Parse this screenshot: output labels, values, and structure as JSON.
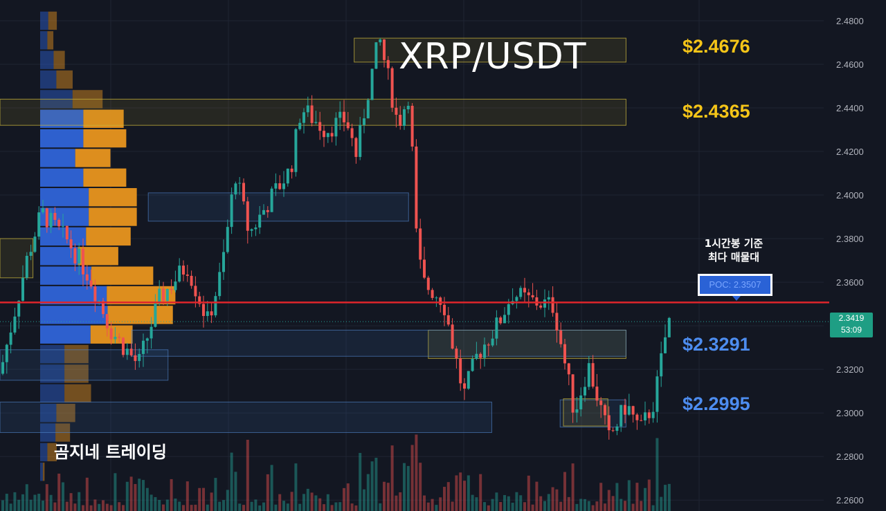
{
  "chart_data": {
    "type": "candlestick",
    "title": "XRP/USDT",
    "y_axis": {
      "ylim": [
        2.255,
        2.4895
      ],
      "ticks": [
        "2.4800",
        "2.4600",
        "2.4400",
        "2.4200",
        "2.4000",
        "2.3800",
        "2.3600",
        "2.3400",
        "2.3200",
        "2.3000",
        "2.2800",
        "2.2600"
      ],
      "position": "right"
    },
    "current_price": "2.3419",
    "countdown": "53:09",
    "poc": {
      "label": "POC: 2.3507",
      "value": 2.3507
    },
    "levels": [
      {
        "label": "$2.4676",
        "value": 2.4676,
        "color": "#f5c518"
      },
      {
        "label": "$2.4365",
        "value": 2.4365,
        "color": "#f5c518"
      },
      {
        "label": "$2.3291",
        "value": 2.3291,
        "color": "#4d8df0"
      },
      {
        "label": "$2.2995",
        "value": 2.2995,
        "color": "#4d8df0"
      }
    ],
    "zones": [
      {
        "color": "yellow",
        "y_top": 2.472,
        "y_bottom": 2.461,
        "x_start": 0.43,
        "x_end": 0.76
      },
      {
        "color": "yellow",
        "y_top": 2.444,
        "y_bottom": 2.432,
        "x_start": 0.0,
        "x_end": 0.76
      },
      {
        "color": "blue",
        "y_top": 2.401,
        "y_bottom": 2.388,
        "x_start": 0.18,
        "x_end": 0.496
      },
      {
        "color": "yellow",
        "y_top": 2.38,
        "y_bottom": 2.362,
        "x_start": 0.0,
        "x_end": 0.04
      },
      {
        "color": "yellow",
        "y_top": 2.338,
        "y_bottom": 2.325,
        "x_start": 0.52,
        "x_end": 0.76
      },
      {
        "color": "blue",
        "y_top": 2.338,
        "y_bottom": 2.326,
        "x_start": 0.16,
        "x_end": 0.76
      },
      {
        "color": "blue",
        "y_top": 2.329,
        "y_bottom": 2.315,
        "x_start": 0.0,
        "x_end": 0.204
      },
      {
        "color": "blue",
        "y_top": 2.306,
        "y_bottom": 2.2935,
        "x_start": 0.68,
        "x_end": 0.76
      },
      {
        "color": "blue",
        "y_top": 2.305,
        "y_bottom": 2.291,
        "x_start": 0.0,
        "x_end": 0.597
      },
      {
        "color": "yellow",
        "y_top": 2.3065,
        "y_bottom": 2.294,
        "x_start": 0.684,
        "x_end": 0.738
      }
    ],
    "volume_profile": [
      {
        "price": 2.48,
        "buy": 18,
        "sell": 20
      },
      {
        "price": 2.471,
        "buy": 16,
        "sell": 14
      },
      {
        "price": 2.462,
        "buy": 30,
        "sell": 26
      },
      {
        "price": 2.453,
        "buy": 36,
        "sell": 38
      },
      {
        "price": 2.444,
        "buy": 72,
        "sell": 70
      },
      {
        "price": 2.435,
        "buy": 96,
        "sell": 94
      },
      {
        "price": 2.426,
        "buy": 96,
        "sell": 100
      },
      {
        "price": 2.417,
        "buy": 78,
        "sell": 82
      },
      {
        "price": 2.408,
        "buy": 96,
        "sell": 100
      },
      {
        "price": 2.399,
        "buy": 108,
        "sell": 112
      },
      {
        "price": 2.39,
        "buy": 108,
        "sell": 112
      },
      {
        "price": 2.381,
        "buy": 102,
        "sell": 104
      },
      {
        "price": 2.372,
        "buy": 84,
        "sell": 94
      },
      {
        "price": 2.363,
        "buy": 114,
        "sell": 144
      },
      {
        "price": 2.354,
        "buy": 148,
        "sell": 160
      },
      {
        "price": 2.345,
        "buy": 150,
        "sell": 152
      },
      {
        "price": 2.336,
        "buy": 112,
        "sell": 98
      },
      {
        "price": 2.327,
        "buy": 54,
        "sell": 56
      },
      {
        "price": 2.318,
        "buy": 54,
        "sell": 56
      },
      {
        "price": 2.309,
        "buy": 54,
        "sell": 62
      },
      {
        "price": 2.3,
        "buy": 36,
        "sell": 44
      },
      {
        "price": 2.291,
        "buy": 34,
        "sell": 34
      },
      {
        "price": 2.282,
        "buy": 16,
        "sell": 22
      },
      {
        "price": 2.273,
        "buy": 6,
        "sell": 4
      }
    ],
    "annotation": "1시간봉 기준\n최다 매물대",
    "watermark": "곰지네 트레이딩"
  },
  "colors": {
    "background": "#131722",
    "grid": "#1f2433",
    "up": "#26a69a",
    "down": "#ef5350",
    "poc_line": "#e0252b",
    "vp_buy": "#2f64d8",
    "vp_sell": "#e8951f"
  }
}
